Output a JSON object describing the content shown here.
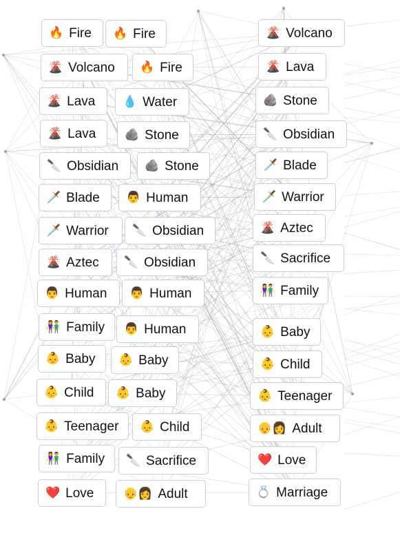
{
  "left_pairs": [
    [
      {
        "emoji": "🔥",
        "label": "Fire"
      },
      {
        "emoji": "🔥",
        "label": "Fire"
      }
    ],
    [
      {
        "emoji": "🌋",
        "label": "Volcano"
      },
      {
        "emoji": "🔥",
        "label": "Fire"
      }
    ],
    [
      {
        "emoji": "🌋",
        "label": "Lava"
      },
      {
        "emoji": "💧",
        "label": "Water"
      }
    ],
    [
      {
        "emoji": "🌋",
        "label": "Lava"
      },
      {
        "emoji": "🪨",
        "label": "Stone"
      }
    ],
    [
      {
        "emoji": "🔪",
        "label": "Obsidian"
      },
      {
        "emoji": "🪨",
        "label": "Stone"
      }
    ],
    [
      {
        "emoji": "🗡️",
        "label": "Blade"
      },
      {
        "emoji": "👨",
        "label": "Human"
      }
    ],
    [
      {
        "emoji": "🗡️",
        "label": "Warrior"
      },
      {
        "emoji": "🔪",
        "label": "Obsidian"
      }
    ],
    [
      {
        "emoji": "🌋",
        "label": "Aztec"
      },
      {
        "emoji": "🔪",
        "label": "Obsidian"
      }
    ],
    [
      {
        "emoji": "👨",
        "label": "Human"
      },
      {
        "emoji": "👨",
        "label": "Human"
      }
    ],
    [
      {
        "emoji": "👫",
        "label": "Family"
      },
      {
        "emoji": "👨",
        "label": "Human"
      }
    ],
    [
      {
        "emoji": "👶",
        "label": "Baby"
      },
      {
        "emoji": "👶",
        "label": "Baby"
      }
    ],
    [
      {
        "emoji": "👶",
        "label": "Child"
      },
      {
        "emoji": "👶",
        "label": "Baby"
      }
    ],
    [
      {
        "emoji": "👶",
        "label": "Teenager"
      },
      {
        "emoji": "👶",
        "label": "Child"
      }
    ],
    [
      {
        "emoji": "👫",
        "label": "Family"
      },
      {
        "emoji": "🔪",
        "label": "Sacrifice"
      }
    ],
    [
      {
        "emoji": "❤️",
        "label": "Love"
      },
      {
        "emoji": "👴👩",
        "label": "Adult"
      }
    ]
  ],
  "results": [
    {
      "emoji": "🌋",
      "label": "Volcano"
    },
    {
      "emoji": "🌋",
      "label": "Lava"
    },
    {
      "emoji": "🪨",
      "label": "Stone"
    },
    {
      "emoji": "🔪",
      "label": "Obsidian"
    },
    {
      "emoji": "🗡️",
      "label": "Blade"
    },
    {
      "emoji": "🗡️",
      "label": "Warrior"
    },
    {
      "emoji": "🌋",
      "label": "Aztec"
    },
    {
      "emoji": "🔪",
      "label": "Sacrifice"
    },
    {
      "emoji": "👫",
      "label": "Family"
    },
    {
      "emoji": "👶",
      "label": "Baby"
    },
    {
      "emoji": "👶",
      "label": "Child"
    },
    {
      "emoji": "👶",
      "label": "Teenager"
    },
    {
      "emoji": "👴👩",
      "label": "Adult"
    },
    {
      "emoji": "❤️",
      "label": "Love"
    },
    {
      "emoji": "💍",
      "label": "Marriage"
    }
  ]
}
